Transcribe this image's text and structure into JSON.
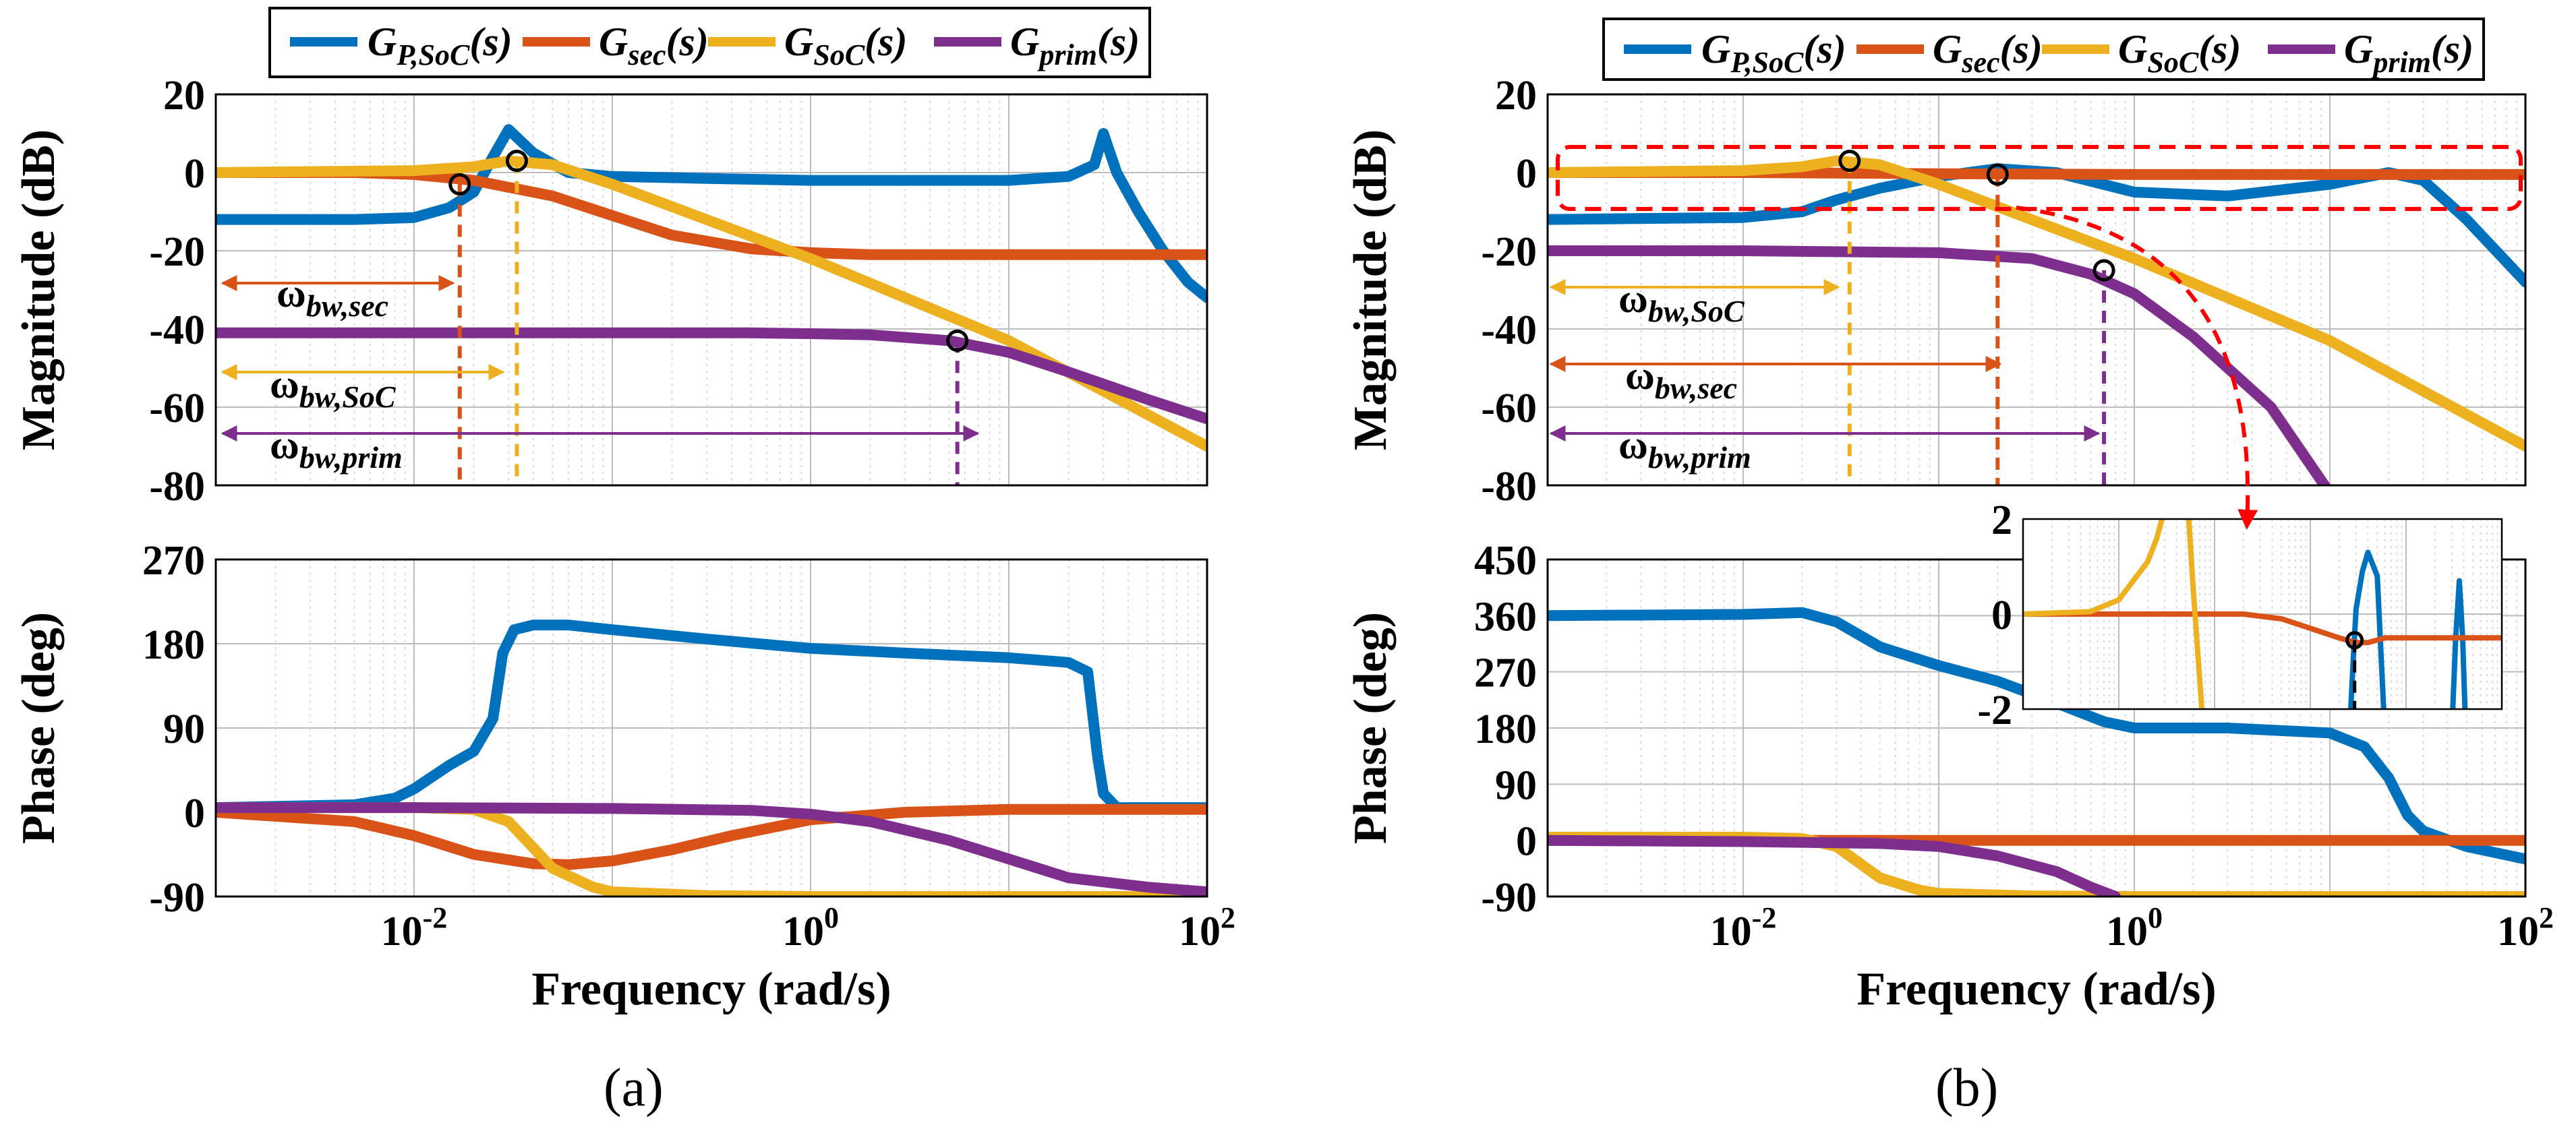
{
  "colors": {
    "G_P_SoC": "#0072BD",
    "G_sec": "#D95319",
    "G_SoC": "#EDB120",
    "G_prim": "#7E2F8E",
    "zoom_box": "#FF0000",
    "marker": "#000000"
  },
  "legend": {
    "G_P_SoC": "G_P,SoC(s)",
    "G_sec": "G_sec(s)",
    "G_SoC": "G_SoC(s)",
    "G_prim": "G_prim(s)"
  },
  "chart_data": [
    {
      "id": "a-magnitude",
      "type": "line",
      "xscale": "log",
      "xlim": [
        0.001,
        100
      ],
      "ylim": [
        -80,
        20
      ],
      "yticks": [
        "20",
        "0",
        "-20",
        "-40",
        "-60",
        "-80"
      ],
      "ylabel": "Magnitude (dB)",
      "bandwidth_labels": [
        "ω_bw,sec",
        "ω_bw,SoC",
        "ω_bw,prim"
      ],
      "series": [
        {
          "name": "G_P,SoC(s)",
          "x": [
            0.001,
            0.005,
            0.01,
            0.015,
            0.02,
            0.025,
            0.03,
            0.04,
            0.06,
            0.1,
            0.3,
            1,
            3,
            10,
            20,
            27,
            30,
            35,
            45,
            60,
            80,
            100
          ],
          "y": [
            -12,
            -12,
            -11.5,
            -9,
            -5,
            4,
            11,
            5,
            0,
            -1,
            -1.5,
            -2,
            -2,
            -2,
            -1,
            2,
            10,
            0,
            -10,
            -20,
            -28,
            -32
          ]
        },
        {
          "name": "G_sec(s)",
          "x": [
            0.001,
            0.005,
            0.01,
            0.02,
            0.05,
            0.1,
            0.2,
            0.5,
            1,
            2,
            5,
            10,
            100
          ],
          "y": [
            0,
            0,
            -0.5,
            -2,
            -6,
            -11,
            -16,
            -19.5,
            -20.5,
            -21,
            -21,
            -21,
            -21
          ]
        },
        {
          "name": "G_SoC(s)",
          "x": [
            0.001,
            0.01,
            0.02,
            0.03,
            0.05,
            0.1,
            1,
            10,
            100
          ],
          "y": [
            0,
            0.5,
            1.5,
            3,
            2,
            -3,
            -22,
            -43,
            -70
          ]
        },
        {
          "name": "G_prim(s)",
          "x": [
            0.001,
            0.01,
            0.1,
            0.5,
            1,
            2,
            5,
            10,
            20,
            50,
            100
          ],
          "y": [
            -41,
            -41,
            -41,
            -41,
            -41.2,
            -41.5,
            -43,
            -46,
            -51,
            -58,
            -63
          ]
        }
      ],
      "markers": [
        {
          "x": 0.017,
          "y": -3
        },
        {
          "x": 0.033,
          "y": 3
        },
        {
          "x": 5.5,
          "y": -43
        }
      ]
    },
    {
      "id": "a-phase",
      "type": "line",
      "xscale": "log",
      "xlim": [
        0.001,
        100
      ],
      "ylim": [
        -90,
        270
      ],
      "yticks": [
        "270",
        "180",
        "90",
        "0",
        "-90"
      ],
      "xticks": [
        {
          "value": 0.01,
          "base": "10",
          "exp": "-2"
        },
        {
          "value": 1,
          "base": "10",
          "exp": "0"
        },
        {
          "value": 100,
          "base": "10",
          "exp": "2"
        }
      ],
      "ylabel": "Phase (deg)",
      "xlabel": "Frequency (rad/s)",
      "series": [
        {
          "name": "G_P,SoC(s)",
          "x": [
            0.001,
            0.005,
            0.008,
            0.01,
            0.015,
            0.02,
            0.025,
            0.028,
            0.032,
            0.04,
            0.06,
            0.1,
            0.3,
            1,
            3,
            10,
            20,
            25,
            28,
            30,
            35,
            50,
            100
          ],
          "y": [
            5,
            8,
            15,
            25,
            50,
            65,
            100,
            170,
            195,
            200,
            200,
            195,
            185,
            175,
            170,
            165,
            160,
            150,
            60,
            20,
            5,
            5,
            5
          ]
        },
        {
          "name": "G_sec(s)",
          "x": [
            0.001,
            0.005,
            0.01,
            0.02,
            0.04,
            0.06,
            0.1,
            0.2,
            0.4,
            1,
            3,
            10,
            100
          ],
          "y": [
            0,
            -10,
            -25,
            -45,
            -55,
            -56,
            -52,
            -40,
            -25,
            -8,
            0,
            3,
            3
          ]
        },
        {
          "name": "G_SoC(s)",
          "x": [
            0.001,
            0.01,
            0.02,
            0.03,
            0.05,
            0.08,
            0.1,
            0.3,
            1,
            10,
            100
          ],
          "y": [
            5,
            5,
            3,
            -10,
            -60,
            -80,
            -85,
            -89,
            -90,
            -90,
            -90
          ]
        },
        {
          "name": "G_prim(s)",
          "x": [
            0.001,
            0.01,
            0.1,
            0.5,
            1,
            2,
            5,
            10,
            20,
            50,
            100
          ],
          "y": [
            5,
            5,
            4,
            2,
            -2,
            -10,
            -30,
            -50,
            -70,
            -80,
            -85
          ]
        }
      ]
    },
    {
      "id": "b-magnitude",
      "type": "line",
      "xscale": "log",
      "xlim": [
        0.001,
        100
      ],
      "ylim": [
        -80,
        20
      ],
      "yticks": [
        "20",
        "0",
        "-20",
        "-40",
        "-60",
        "-80"
      ],
      "ylabel": "Magnitude (dB)",
      "bandwidth_labels": [
        "ω_bw,SoC",
        "ω_bw,sec",
        "ω_bw,prim"
      ],
      "series": [
        {
          "name": "G_P,SoC(s)",
          "x": [
            0.001,
            0.01,
            0.02,
            0.03,
            0.05,
            0.1,
            0.2,
            0.4,
            1,
            3,
            10,
            20,
            30,
            50,
            100
          ],
          "y": [
            -12,
            -11.5,
            -10,
            -7,
            -4,
            -1,
            1,
            0,
            -5,
            -6,
            -3,
            0,
            -2,
            -12,
            -28
          ]
        },
        {
          "name": "G_sec(s)",
          "x": [
            0.001,
            0.01,
            0.1,
            1,
            10,
            100
          ],
          "y": [
            0,
            0,
            -0.3,
            -0.5,
            -0.5,
            -0.5
          ]
        },
        {
          "name": "G_SoC(s)",
          "x": [
            0.001,
            0.01,
            0.02,
            0.03,
            0.05,
            0.1,
            1,
            10,
            100
          ],
          "y": [
            0,
            0.5,
            1.5,
            3,
            2,
            -3,
            -22,
            -43,
            -70
          ]
        },
        {
          "name": "G_prim(s)",
          "x": [
            0.001,
            0.01,
            0.1,
            0.3,
            0.6,
            1,
            2,
            5,
            10
          ],
          "y": [
            -20,
            -20,
            -20.5,
            -22,
            -26,
            -31,
            -42,
            -60,
            -82
          ]
        }
      ],
      "markers": [
        {
          "x": 0.035,
          "y": 3
        },
        {
          "x": 0.2,
          "y": -0.5
        },
        {
          "x": 0.7,
          "y": -25
        }
      ]
    },
    {
      "id": "b-phase",
      "type": "line",
      "xscale": "log",
      "xlim": [
        0.001,
        100
      ],
      "ylim": [
        -90,
        450
      ],
      "yticks": [
        "450",
        "360",
        "270",
        "180",
        "90",
        "0",
        "-90"
      ],
      "xticks": [
        {
          "value": 0.01,
          "base": "10",
          "exp": "-2"
        },
        {
          "value": 1,
          "base": "10",
          "exp": "0"
        },
        {
          "value": 100,
          "base": "10",
          "exp": "2"
        }
      ],
      "ylabel": "Phase (deg)",
      "xlabel": "Frequency (rad/s)",
      "series": [
        {
          "name": "G_P,SoC(s)",
          "x": [
            0.001,
            0.01,
            0.02,
            0.03,
            0.05,
            0.1,
            0.2,
            0.4,
            0.7,
            1,
            3,
            10,
            15,
            20,
            25,
            30,
            50,
            100
          ],
          "y": [
            360,
            362,
            365,
            350,
            310,
            280,
            255,
            220,
            190,
            180,
            180,
            172,
            150,
            100,
            40,
            15,
            -10,
            -30
          ]
        },
        {
          "name": "G_sec(s)",
          "x": [
            0.001,
            0.1,
            1,
            10,
            100
          ],
          "y": [
            0,
            0,
            0,
            0,
            0
          ]
        },
        {
          "name": "G_SoC(s)",
          "x": [
            0.001,
            0.01,
            0.02,
            0.03,
            0.05,
            0.08,
            0.1,
            0.3,
            1,
            10,
            100
          ],
          "y": [
            5,
            5,
            3,
            -10,
            -60,
            -80,
            -85,
            -89,
            -90,
            -90,
            -90
          ]
        },
        {
          "name": "G_prim(s)",
          "x": [
            0.001,
            0.01,
            0.05,
            0.1,
            0.2,
            0.4,
            0.6,
            0.8
          ],
          "y": [
            0,
            -2,
            -5,
            -10,
            -25,
            -50,
            -75,
            -90
          ]
        }
      ]
    },
    {
      "id": "b-inset-zoom",
      "type": "line",
      "xscale": "log",
      "xlim": [
        0.001,
        100
      ],
      "ylim": [
        -2,
        2
      ],
      "yticks": [
        "2",
        "0",
        "-2"
      ],
      "series": [
        {
          "name": "G_P,SoC(s)",
          "x": [
            2.5,
            2.8,
            3,
            3.5,
            4,
            5,
            6,
            30,
            33,
            36,
            39,
            42
          ],
          "y": [
            -3,
            -1,
            0.1,
            0.9,
            1.3,
            0.8,
            -2.5,
            -2.5,
            -0.5,
            0.7,
            -0.5,
            -2.5
          ]
        },
        {
          "name": "G_sec(s)",
          "x": [
            0.001,
            0.2,
            0.5,
            1,
            2,
            3,
            4,
            6,
            10,
            100
          ],
          "y": [
            0,
            0,
            -0.1,
            -0.3,
            -0.5,
            -0.6,
            -0.6,
            -0.5,
            -0.5,
            -0.5
          ]
        },
        {
          "name": "G_SoC(s)",
          "x": [
            0.001,
            0.005,
            0.01,
            0.02,
            0.025,
            0.03,
            0.035,
            0.05,
            0.06,
            0.08
          ],
          "y": [
            0,
            0.05,
            0.3,
            1.1,
            1.6,
            2.2,
            3,
            3,
            0.5,
            -3
          ]
        }
      ],
      "markers": [
        {
          "x": 2.9,
          "y": -0.55
        }
      ]
    }
  ],
  "subfigure_labels": [
    "(a)",
    "(b)"
  ]
}
